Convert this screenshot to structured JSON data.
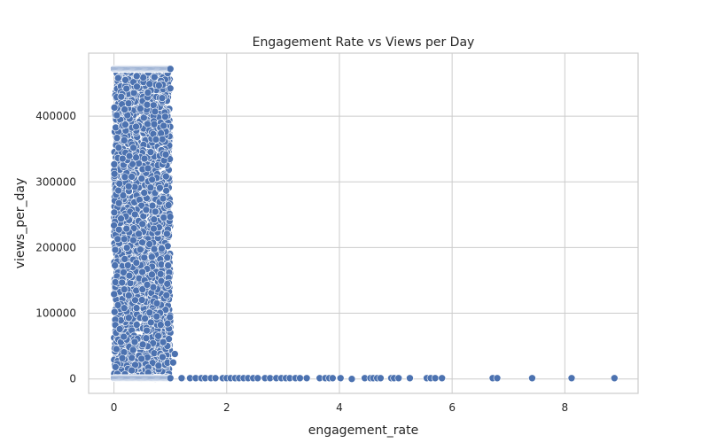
{
  "chart_data": {
    "type": "scatter",
    "title": "Engagement Rate vs Views per Day",
    "xlabel": "engagement_rate",
    "ylabel": "views_per_day",
    "xlim": [
      -0.45,
      9.3
    ],
    "ylim": [
      -22000,
      496000
    ],
    "x_ticks": [
      0,
      2,
      4,
      6,
      8
    ],
    "y_ticks": [
      0,
      100000,
      200000,
      300000,
      400000
    ],
    "x_tick_labels": [
      "0",
      "2",
      "4",
      "6",
      "8"
    ],
    "y_tick_labels": [
      "0",
      "100000",
      "200000",
      "300000",
      "400000"
    ],
    "grid": true,
    "point_color": "#4c72b0",
    "dense_cluster": {
      "x_range": [
        0,
        1.0
      ],
      "y_range": [
        0,
        472000
      ],
      "approx_count": 2200
    },
    "points": [
      {
        "x": 1.08,
        "y": 38000
      },
      {
        "x": 1.05,
        "y": 25000
      },
      {
        "x": 1.2,
        "y": 1200
      },
      {
        "x": 1.35,
        "y": 1200
      },
      {
        "x": 1.45,
        "y": 1200
      },
      {
        "x": 1.55,
        "y": 1200
      },
      {
        "x": 1.62,
        "y": 1200
      },
      {
        "x": 1.72,
        "y": 1200
      },
      {
        "x": 1.8,
        "y": 1200
      },
      {
        "x": 1.93,
        "y": 1200
      },
      {
        "x": 2.0,
        "y": 1200
      },
      {
        "x": 2.07,
        "y": 1200
      },
      {
        "x": 2.15,
        "y": 1200
      },
      {
        "x": 2.22,
        "y": 1200
      },
      {
        "x": 2.3,
        "y": 1200
      },
      {
        "x": 2.38,
        "y": 1200
      },
      {
        "x": 2.47,
        "y": 1200
      },
      {
        "x": 2.55,
        "y": 1200
      },
      {
        "x": 2.68,
        "y": 1200
      },
      {
        "x": 2.77,
        "y": 1200
      },
      {
        "x": 2.88,
        "y": 1200
      },
      {
        "x": 2.97,
        "y": 1200
      },
      {
        "x": 3.05,
        "y": 1200
      },
      {
        "x": 3.12,
        "y": 1200
      },
      {
        "x": 3.22,
        "y": 1200
      },
      {
        "x": 3.3,
        "y": 1200
      },
      {
        "x": 3.42,
        "y": 1200
      },
      {
        "x": 3.65,
        "y": 1200
      },
      {
        "x": 3.75,
        "y": 1200
      },
      {
        "x": 3.82,
        "y": 1200
      },
      {
        "x": 3.88,
        "y": 1200
      },
      {
        "x": 4.02,
        "y": 1200
      },
      {
        "x": 4.22,
        "y": 0
      },
      {
        "x": 4.45,
        "y": 1200
      },
      {
        "x": 4.55,
        "y": 1200
      },
      {
        "x": 4.6,
        "y": 1200
      },
      {
        "x": 4.67,
        "y": 1200
      },
      {
        "x": 4.73,
        "y": 1200
      },
      {
        "x": 4.92,
        "y": 1200
      },
      {
        "x": 4.97,
        "y": 1200
      },
      {
        "x": 5.05,
        "y": 1200
      },
      {
        "x": 5.25,
        "y": 1200
      },
      {
        "x": 5.55,
        "y": 1200
      },
      {
        "x": 5.62,
        "y": 1200
      },
      {
        "x": 5.7,
        "y": 1200
      },
      {
        "x": 5.82,
        "y": 1200
      },
      {
        "x": 6.72,
        "y": 1200
      },
      {
        "x": 6.8,
        "y": 1200
      },
      {
        "x": 7.42,
        "y": 1200
      },
      {
        "x": 8.12,
        "y": 1200
      },
      {
        "x": 8.88,
        "y": 1200
      }
    ]
  }
}
